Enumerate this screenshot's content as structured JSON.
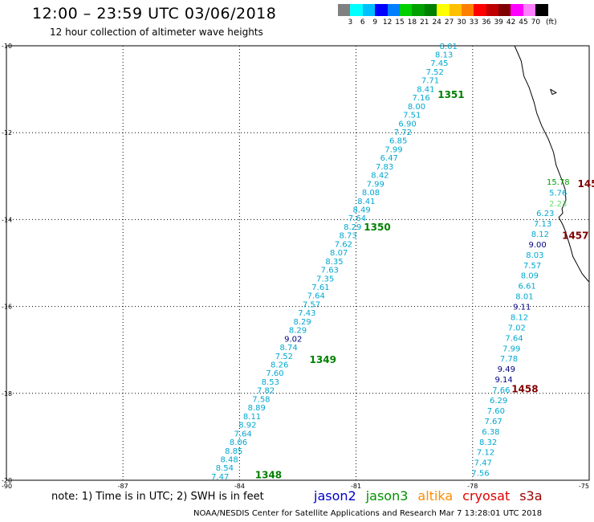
{
  "title": "12:00 – 23:59 UTC 03/06/2018",
  "subtitle": "12 hour collection of altimeter wave heights",
  "scale": {
    "unit": "(ft)",
    "colors": [
      "#808080",
      "#00ffff",
      "#00bfff",
      "#0000ff",
      "#0080ff",
      "#00d000",
      "#00a000",
      "#008000",
      "#ffff00",
      "#ffc000",
      "#ff8000",
      "#ff0000",
      "#c00000",
      "#800000",
      "#ff00ff",
      "#ff80ff",
      "#000000"
    ],
    "labels": [
      "3",
      "6",
      "9",
      "12",
      "15",
      "18",
      "21",
      "24",
      "27",
      "30",
      "33",
      "36",
      "39",
      "42",
      "45",
      "70"
    ]
  },
  "axes": {
    "lon_ticks": [
      "-90",
      "-87",
      "-84",
      "-81",
      "-78",
      "-75"
    ],
    "lat_ticks": [
      "-10",
      "-12",
      "-14",
      "-16",
      "-18",
      "-20"
    ],
    "lon_range": [
      -90,
      -75
    ],
    "lat_range": [
      -20,
      -10
    ]
  },
  "tracks": [
    {
      "name": "1351",
      "color": "#008000",
      "label_at": [
        -78.9,
        -11.2
      ],
      "start": [
        -78.63,
        -10.05
      ],
      "end": [
        -81.22,
        -14.22
      ]
    },
    {
      "name": "1350",
      "color": "#008000",
      "label_at": [
        -80.8,
        -14.25
      ],
      "start": [
        -81.22,
        -14.25
      ],
      "end": [
        -82.3,
        -16.3
      ]
    },
    {
      "name": "1349",
      "color": "#008000",
      "label_at": [
        -82.2,
        -17.3
      ],
      "start": [
        -82.3,
        -16.3
      ],
      "end": [
        -83.68,
        -18.0
      ]
    },
    {
      "name": "1348",
      "color": "#008000",
      "label_at": [
        -83.6,
        -19.95
      ],
      "start": [
        -83.68,
        -18.0
      ],
      "end": [
        -84.5,
        -20.0
      ]
    },
    {
      "name": "1457",
      "color": "#800000",
      "label_at": [
        -75.7,
        -14.45
      ],
      "start": [
        -76.25,
        -13.3
      ],
      "end": [
        -76.5,
        -16.0
      ]
    },
    {
      "name": "1458",
      "color": "#800000",
      "label_at": [
        -77.0,
        -17.98
      ],
      "start": [
        -76.5,
        -16.0
      ],
      "end": [
        -77.8,
        -20.0
      ]
    },
    {
      "name": "145",
      "color": "#800000",
      "label_at": [
        -75.3,
        -13.25
      ],
      "start": null,
      "end": null
    }
  ],
  "track_values": {
    "pass_1351_1348": [
      "8.01",
      "8.13",
      "7.45",
      "7.52",
      "7.71",
      "8.41",
      "7.16",
      "8.00",
      "7.51",
      "6.90",
      "7.72",
      "6.85",
      "7.99",
      "6.47",
      "7.83",
      "8.42",
      "7.99",
      "8.08",
      "8.41",
      "8.49",
      "7.64",
      "8.29",
      "8.73",
      "7.62",
      "8.07",
      "8.35",
      "7.63",
      "7.35",
      "7.61",
      "7.64",
      "7.57",
      "7.43",
      "8.29",
      "8.29",
      "9.02",
      "8.74",
      "7.52",
      "8.26",
      "7.60",
      "8.53",
      "7.82",
      "7.58",
      "8.89",
      "8.11",
      "8.92",
      "7.64",
      "8.06",
      "8.85",
      "8.48",
      "8.54",
      "7.47"
    ],
    "pass_1457_1458": [
      "15.78",
      "5.76",
      "2.23",
      "6.23",
      "7.13",
      "8.12",
      "9.00",
      "8.03",
      "7.57",
      "8.09",
      "6.61",
      "8.01",
      "9.11",
      "8.12",
      "7.02",
      "7.64",
      "7.99",
      "7.78",
      "9.49",
      "9.14",
      "7.66",
      "6.29",
      "7.60",
      "7.67",
      "6.38",
      "8.32",
      "7.12",
      "7.47",
      "7.56"
    ]
  },
  "coastline": [
    [
      -76.92,
      -10.0
    ],
    [
      -76.75,
      -10.35
    ],
    [
      -76.68,
      -10.7
    ],
    [
      -76.55,
      -10.95
    ],
    [
      -76.42,
      -11.3
    ],
    [
      -76.35,
      -11.55
    ],
    [
      -76.22,
      -11.85
    ],
    [
      -76.05,
      -12.15
    ],
    [
      -75.92,
      -12.45
    ],
    [
      -75.85,
      -12.75
    ],
    [
      -75.72,
      -13.05
    ],
    [
      -75.62,
      -13.3
    ],
    [
      -75.6,
      -13.55
    ],
    [
      -75.7,
      -13.75
    ],
    [
      -75.68,
      -13.85
    ],
    [
      -75.78,
      -13.95
    ],
    [
      -75.68,
      -14.12
    ],
    [
      -75.62,
      -14.25
    ],
    [
      -75.55,
      -14.45
    ],
    [
      -75.48,
      -14.65
    ],
    [
      -75.42,
      -14.85
    ],
    [
      -75.3,
      -15.05
    ],
    [
      -75.18,
      -15.25
    ],
    [
      -75.02,
      -15.42
    ],
    [
      -75.0,
      -15.42
    ]
  ],
  "island": [
    [
      -76.0,
      -11.0
    ],
    [
      -75.85,
      -11.08
    ],
    [
      -75.95,
      -11.12
    ],
    [
      -76.0,
      -11.0
    ]
  ],
  "footer": {
    "note": "note: 1) Time is in UTC; 2) SWH is in feet",
    "satellites": [
      {
        "name": "jason2",
        "color": "#0000c8"
      },
      {
        "name": "jason3",
        "color": "#009000"
      },
      {
        "name": "altika",
        "color": "#ff8c00"
      },
      {
        "name": "cryosat",
        "color": "#e00000"
      },
      {
        "name": "s3a",
        "color": "#a00000"
      }
    ],
    "credit": "NOAA/NESDIS Center for Satellite Applications and Research   Mar  7 13:28:01 UTC 2018"
  }
}
